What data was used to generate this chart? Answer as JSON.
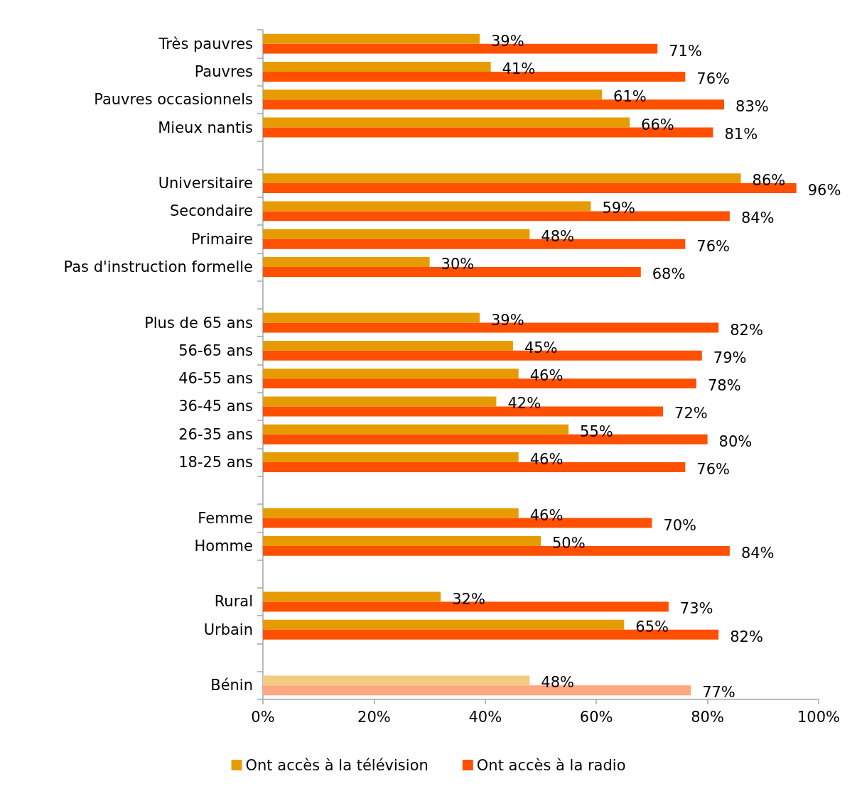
{
  "chart_data": {
    "type": "bar",
    "orientation": "horizontal",
    "categories": [
      "Très pauvres",
      "Pauvres",
      "Pauvres occasionnels",
      "Mieux nantis",
      null,
      "Universitaire",
      "Secondaire",
      "Primaire",
      "Pas d'instruction formelle",
      null,
      "Plus de 65 ans",
      "56-65 ans",
      "46-55 ans",
      "36-45 ans",
      "26-35 ans",
      "18-25 ans",
      null,
      "Femme",
      "Homme",
      null,
      "Rural",
      "Urbain",
      null,
      "Bénin"
    ],
    "series": [
      {
        "name": "Ont accès à la télévision",
        "color": "#e69c00",
        "colors": [
          "#e69c00",
          "#e69c00",
          "#e69c00",
          "#e69c00",
          null,
          "#e69c00",
          "#e69c00",
          "#e69c00",
          "#e69c00",
          null,
          "#e69c00",
          "#e69c00",
          "#e69c00",
          "#e69c00",
          "#e69c00",
          "#e69c00",
          null,
          "#e69c00",
          "#e69c00",
          null,
          "#e69c00",
          "#e69c00",
          null,
          "#f2cd80"
        ],
        "values": [
          39,
          41,
          61,
          66,
          null,
          86,
          59,
          48,
          30,
          null,
          39,
          45,
          46,
          42,
          55,
          46,
          null,
          46,
          50,
          null,
          32,
          65,
          null,
          48
        ],
        "value_labels": [
          "39%",
          "41%",
          "61%",
          "66%",
          null,
          "86%",
          "59%",
          "48%",
          "30%",
          null,
          "39%",
          "45%",
          "46%",
          "42%",
          "55%",
          "46%",
          null,
          "46%",
          "50%",
          null,
          "32%",
          "65%",
          null,
          "48%"
        ]
      },
      {
        "name": "Ont accès à la radio",
        "color": "#ff5000",
        "colors": [
          "#ff5000",
          "#ff5000",
          "#ff5000",
          "#ff5000",
          null,
          "#ff5000",
          "#ff5000",
          "#ff5000",
          "#ff5000",
          null,
          "#ff5000",
          "#ff5000",
          "#ff5000",
          "#ff5000",
          "#ff5000",
          "#ff5000",
          null,
          "#ff5000",
          "#ff5000",
          null,
          "#ff5000",
          "#ff5000",
          null,
          "#ffa780"
        ],
        "values": [
          71,
          76,
          83,
          81,
          null,
          96,
          84,
          76,
          68,
          null,
          82,
          79,
          78,
          72,
          80,
          76,
          null,
          70,
          84,
          null,
          73,
          82,
          null,
          77
        ],
        "value_labels": [
          "71%",
          "76%",
          "83%",
          "81%",
          null,
          "96%",
          "84%",
          "76%",
          "68%",
          null,
          "82%",
          "79%",
          "78%",
          "72%",
          "80%",
          "76%",
          null,
          "70%",
          "84%",
          null,
          "73%",
          "82%",
          null,
          "77%"
        ]
      }
    ],
    "xlim": [
      0,
      100
    ],
    "xticks": [
      {
        "value": 0,
        "label": "0%"
      },
      {
        "value": 20,
        "label": "20%"
      },
      {
        "value": 40,
        "label": "40%"
      },
      {
        "value": 60,
        "label": "60%"
      },
      {
        "value": 80,
        "label": "80%"
      },
      {
        "value": 100,
        "label": "100%"
      }
    ],
    "grid": false,
    "legend": "bottom"
  }
}
